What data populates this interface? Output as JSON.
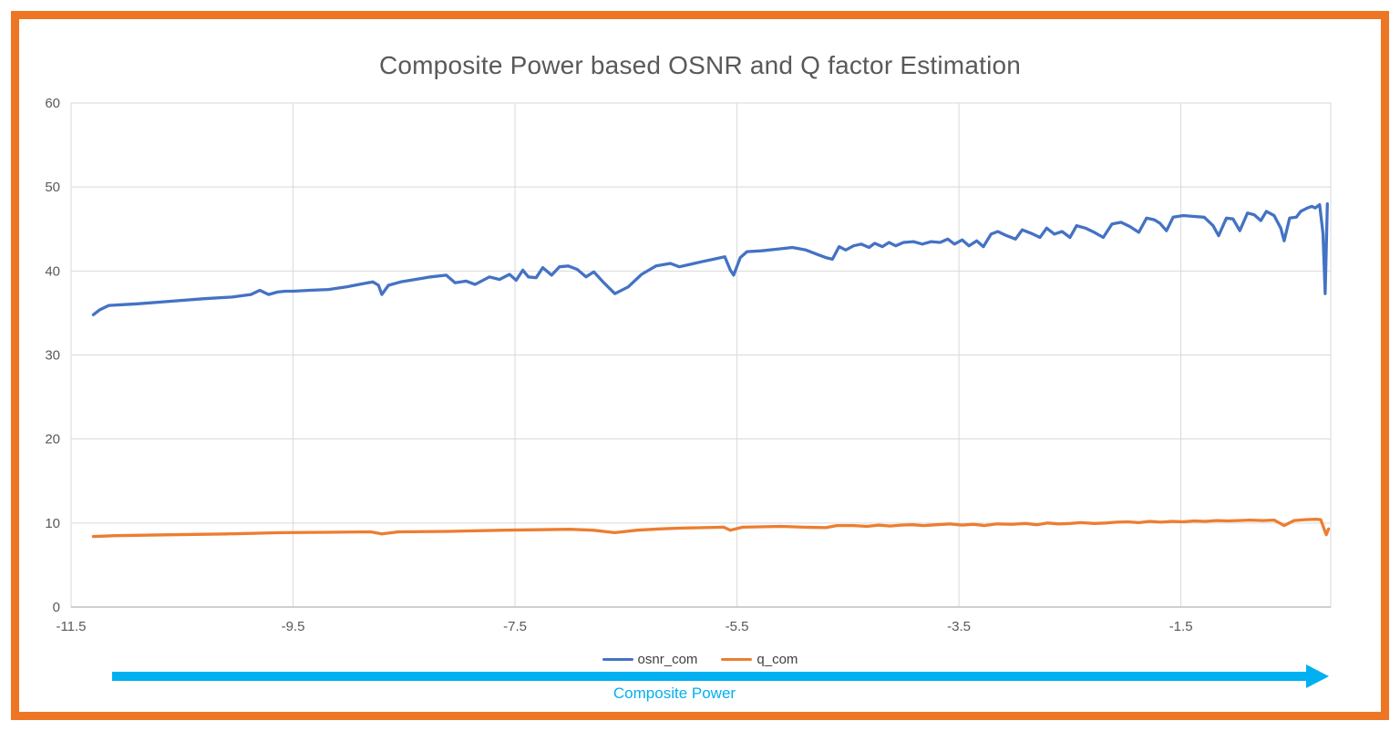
{
  "frame": {
    "border_color": "#EE7523"
  },
  "footer": {
    "arrow_label": "Composite Power",
    "arrow_color": "#00B0F0"
  },
  "palette": {
    "grid": "#D9D9D9",
    "axis": "#BFBFBF",
    "tick_text": "#595959",
    "title_text": "#595959"
  },
  "chart_data": {
    "type": "line",
    "title": "Composite Power based OSNR and Q factor Estimation",
    "xlabel": "Composite Power",
    "ylabel": "",
    "xlim": [
      -11.5,
      -0.15
    ],
    "ylim": [
      0,
      60
    ],
    "x_ticks": [
      -11.5,
      -9.5,
      -7.5,
      -5.5,
      -3.5,
      -1.5
    ],
    "x_tick_labels": [
      "-11.5",
      "-9.5",
      "-7.5",
      "-5.5",
      "-3.5",
      "-1.5"
    ],
    "y_ticks": [
      0,
      10,
      20,
      30,
      40,
      50,
      60
    ],
    "grid": true,
    "legend_position": "bottom",
    "series": [
      {
        "name": "osnr_com",
        "color": "#4472C4",
        "points": [
          [
            -11.3,
            34.8
          ],
          [
            -11.24,
            35.4
          ],
          [
            -11.16,
            35.9
          ],
          [
            -10.9,
            36.1
          ],
          [
            -10.6,
            36.4
          ],
          [
            -10.3,
            36.7
          ],
          [
            -10.05,
            36.9
          ],
          [
            -9.88,
            37.2
          ],
          [
            -9.8,
            37.7
          ],
          [
            -9.72,
            37.2
          ],
          [
            -9.64,
            37.5
          ],
          [
            -9.57,
            37.6
          ],
          [
            -9.5,
            37.6
          ],
          [
            -9.35,
            37.7
          ],
          [
            -9.18,
            37.8
          ],
          [
            -9.02,
            38.1
          ],
          [
            -8.87,
            38.5
          ],
          [
            -8.78,
            38.7
          ],
          [
            -8.73,
            38.3
          ],
          [
            -8.7,
            37.2
          ],
          [
            -8.64,
            38.3
          ],
          [
            -8.53,
            38.7
          ],
          [
            -8.4,
            39.0
          ],
          [
            -8.26,
            39.3
          ],
          [
            -8.12,
            39.5
          ],
          [
            -8.04,
            38.6
          ],
          [
            -7.94,
            38.8
          ],
          [
            -7.86,
            38.4
          ],
          [
            -7.73,
            39.3
          ],
          [
            -7.64,
            39.0
          ],
          [
            -7.55,
            39.6
          ],
          [
            -7.49,
            38.9
          ],
          [
            -7.43,
            40.1
          ],
          [
            -7.38,
            39.3
          ],
          [
            -7.31,
            39.2
          ],
          [
            -7.25,
            40.4
          ],
          [
            -7.17,
            39.5
          ],
          [
            -7.1,
            40.5
          ],
          [
            -7.02,
            40.6
          ],
          [
            -6.94,
            40.2
          ],
          [
            -6.86,
            39.3
          ],
          [
            -6.79,
            39.9
          ],
          [
            -6.7,
            38.6
          ],
          [
            -6.6,
            37.3
          ],
          [
            -6.48,
            38.1
          ],
          [
            -6.36,
            39.6
          ],
          [
            -6.23,
            40.6
          ],
          [
            -6.1,
            40.9
          ],
          [
            -6.02,
            40.5
          ],
          [
            -5.92,
            40.8
          ],
          [
            -5.82,
            41.1
          ],
          [
            -5.71,
            41.4
          ],
          [
            -5.61,
            41.7
          ],
          [
            -5.56,
            40.1
          ],
          [
            -5.53,
            39.5
          ],
          [
            -5.47,
            41.6
          ],
          [
            -5.41,
            42.3
          ],
          [
            -5.28,
            42.4
          ],
          [
            -5.14,
            42.6
          ],
          [
            -5.0,
            42.8
          ],
          [
            -4.88,
            42.5
          ],
          [
            -4.78,
            42.0
          ],
          [
            -4.7,
            41.6
          ],
          [
            -4.64,
            41.4
          ],
          [
            -4.58,
            42.9
          ],
          [
            -4.52,
            42.5
          ],
          [
            -4.45,
            43.0
          ],
          [
            -4.38,
            43.2
          ],
          [
            -4.31,
            42.8
          ],
          [
            -4.26,
            43.3
          ],
          [
            -4.19,
            42.9
          ],
          [
            -4.13,
            43.4
          ],
          [
            -4.07,
            43.0
          ],
          [
            -4.0,
            43.4
          ],
          [
            -3.91,
            43.5
          ],
          [
            -3.83,
            43.2
          ],
          [
            -3.75,
            43.5
          ],
          [
            -3.67,
            43.4
          ],
          [
            -3.6,
            43.8
          ],
          [
            -3.54,
            43.2
          ],
          [
            -3.47,
            43.7
          ],
          [
            -3.41,
            43.0
          ],
          [
            -3.34,
            43.6
          ],
          [
            -3.28,
            42.9
          ],
          [
            -3.21,
            44.4
          ],
          [
            -3.15,
            44.7
          ],
          [
            -3.07,
            44.2
          ],
          [
            -2.99,
            43.8
          ],
          [
            -2.93,
            44.9
          ],
          [
            -2.85,
            44.5
          ],
          [
            -2.77,
            44.0
          ],
          [
            -2.71,
            45.1
          ],
          [
            -2.64,
            44.4
          ],
          [
            -2.57,
            44.7
          ],
          [
            -2.5,
            44.0
          ],
          [
            -2.44,
            45.4
          ],
          [
            -2.36,
            45.1
          ],
          [
            -2.28,
            44.6
          ],
          [
            -2.2,
            44.0
          ],
          [
            -2.12,
            45.6
          ],
          [
            -2.04,
            45.8
          ],
          [
            -1.96,
            45.3
          ],
          [
            -1.88,
            44.6
          ],
          [
            -1.81,
            46.3
          ],
          [
            -1.74,
            46.1
          ],
          [
            -1.69,
            45.7
          ],
          [
            -1.63,
            44.8
          ],
          [
            -1.57,
            46.4
          ],
          [
            -1.48,
            46.6
          ],
          [
            -1.39,
            46.5
          ],
          [
            -1.29,
            46.4
          ],
          [
            -1.21,
            45.4
          ],
          [
            -1.16,
            44.2
          ],
          [
            -1.09,
            46.3
          ],
          [
            -1.03,
            46.2
          ],
          [
            -0.97,
            44.8
          ],
          [
            -0.9,
            46.9
          ],
          [
            -0.84,
            46.7
          ],
          [
            -0.78,
            46.0
          ],
          [
            -0.73,
            47.1
          ],
          [
            -0.66,
            46.6
          ],
          [
            -0.6,
            45.1
          ],
          [
            -0.57,
            43.6
          ],
          [
            -0.52,
            46.3
          ],
          [
            -0.46,
            46.4
          ],
          [
            -0.42,
            47.1
          ],
          [
            -0.36,
            47.5
          ],
          [
            -0.32,
            47.7
          ],
          [
            -0.29,
            47.5
          ],
          [
            -0.25,
            47.9
          ],
          [
            -0.22,
            44.5
          ],
          [
            -0.2,
            37.3
          ],
          [
            -0.18,
            48.0
          ]
        ]
      },
      {
        "name": "q_com",
        "color": "#ED7D31",
        "points": [
          [
            -11.3,
            8.4
          ],
          [
            -11.1,
            8.5
          ],
          [
            -10.6,
            8.6
          ],
          [
            -10.1,
            8.7
          ],
          [
            -9.6,
            8.85
          ],
          [
            -9.2,
            8.9
          ],
          [
            -8.8,
            8.95
          ],
          [
            -8.7,
            8.7
          ],
          [
            -8.55,
            8.95
          ],
          [
            -8.1,
            9.0
          ],
          [
            -7.6,
            9.15
          ],
          [
            -7.3,
            9.2
          ],
          [
            -7.0,
            9.25
          ],
          [
            -6.8,
            9.15
          ],
          [
            -6.6,
            8.85
          ],
          [
            -6.4,
            9.15
          ],
          [
            -6.2,
            9.3
          ],
          [
            -6.0,
            9.4
          ],
          [
            -5.8,
            9.45
          ],
          [
            -5.62,
            9.5
          ],
          [
            -5.56,
            9.15
          ],
          [
            -5.45,
            9.5
          ],
          [
            -5.3,
            9.55
          ],
          [
            -5.1,
            9.6
          ],
          [
            -4.9,
            9.5
          ],
          [
            -4.7,
            9.45
          ],
          [
            -4.6,
            9.7
          ],
          [
            -4.45,
            9.7
          ],
          [
            -4.33,
            9.6
          ],
          [
            -4.22,
            9.75
          ],
          [
            -4.12,
            9.65
          ],
          [
            -4.02,
            9.75
          ],
          [
            -3.92,
            9.8
          ],
          [
            -3.82,
            9.7
          ],
          [
            -3.7,
            9.8
          ],
          [
            -3.58,
            9.9
          ],
          [
            -3.47,
            9.75
          ],
          [
            -3.37,
            9.85
          ],
          [
            -3.27,
            9.7
          ],
          [
            -3.16,
            9.9
          ],
          [
            -3.02,
            9.85
          ],
          [
            -2.9,
            9.95
          ],
          [
            -2.8,
            9.8
          ],
          [
            -2.7,
            10.0
          ],
          [
            -2.6,
            9.9
          ],
          [
            -2.5,
            9.95
          ],
          [
            -2.4,
            10.05
          ],
          [
            -2.28,
            9.95
          ],
          [
            -2.18,
            10.0
          ],
          [
            -2.08,
            10.1
          ],
          [
            -1.98,
            10.15
          ],
          [
            -1.88,
            10.05
          ],
          [
            -1.78,
            10.2
          ],
          [
            -1.68,
            10.1
          ],
          [
            -1.58,
            10.2
          ],
          [
            -1.48,
            10.15
          ],
          [
            -1.38,
            10.25
          ],
          [
            -1.28,
            10.2
          ],
          [
            -1.18,
            10.3
          ],
          [
            -1.08,
            10.25
          ],
          [
            -0.98,
            10.3
          ],
          [
            -0.88,
            10.35
          ],
          [
            -0.76,
            10.3
          ],
          [
            -0.66,
            10.35
          ],
          [
            -0.57,
            9.7
          ],
          [
            -0.48,
            10.3
          ],
          [
            -0.38,
            10.4
          ],
          [
            -0.28,
            10.45
          ],
          [
            -0.24,
            10.4
          ],
          [
            -0.19,
            8.6
          ],
          [
            -0.17,
            9.3
          ]
        ]
      }
    ]
  }
}
